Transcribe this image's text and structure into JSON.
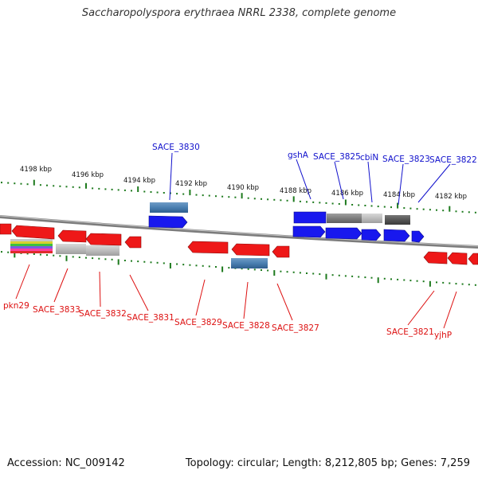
{
  "title": "Saccharopolyspora erythraea NRRL 2338, complete genome",
  "footer": {
    "accession": "Accession: NC_009142",
    "summary": "Topology: circular; Length: 8,212,805 bp; Genes: 7,259"
  },
  "colors": {
    "forward_gene": "#1a1aee",
    "reverse_gene": "#ee1a1a",
    "forward_label": "#1010cc",
    "reverse_label": "#dd1010",
    "tick": "#1d7a1d",
    "backbone": "#8a8a8a",
    "hit_steel": "#4a7fb0",
    "hit_gray": "#8c8c8c",
    "hit_light": "#bdbdbd",
    "hit_dark": "#555555"
  },
  "scale_labels": [
    "4198 kbp",
    "4196 kbp",
    "4194 kbp",
    "4192 kbp",
    "4190 kbp",
    "4188 kbp",
    "4186 kbp",
    "4184 kbp",
    "4182 kbp"
  ],
  "forward_labels": [
    "SACE_3830",
    "gshA",
    "SACE_3825",
    "cbiN",
    "SACE_3823",
    "SACE_3822"
  ],
  "reverse_labels": [
    "pkn29",
    "SACE_3833",
    "SACE_3832",
    "SACE_3831",
    "SACE_3829",
    "SACE_3828",
    "SACE_3827",
    "SACE_3821",
    "yjhP"
  ]
}
